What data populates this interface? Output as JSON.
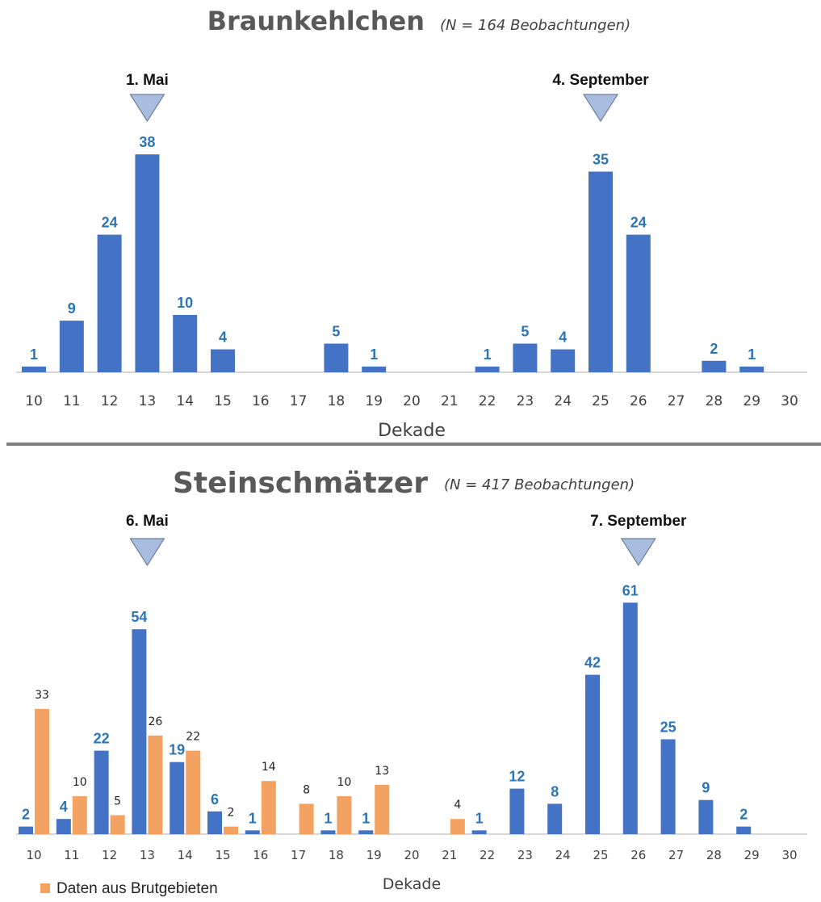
{
  "colors": {
    "primary_bar": "#4472c4",
    "breeding_bar": "#f4a261",
    "marker": "#a9bde0",
    "marker_stroke": "#6f7f99",
    "divider": "#808080",
    "axis": "#c8c8c8"
  },
  "xlabel": "Dekade",
  "chart_data": [
    {
      "type": "bar",
      "title": "Braunkehlchen",
      "subtitle": "(N = 164 Beobachtungen)",
      "xlabel": "Dekade",
      "categories": [
        "10",
        "11",
        "12",
        "13",
        "14",
        "15",
        "16",
        "17",
        "18",
        "19",
        "20",
        "21",
        "22",
        "23",
        "24",
        "25",
        "26",
        "27",
        "28",
        "29",
        "30"
      ],
      "series": [
        {
          "values": [
            1,
            9,
            24,
            38,
            10,
            4,
            null,
            null,
            5,
            1,
            null,
            null,
            1,
            5,
            4,
            35,
            24,
            null,
            2,
            1,
            null
          ],
          "color": "#4472c4"
        }
      ],
      "markers": [
        {
          "label": "1. Mai",
          "category": "13"
        },
        {
          "label": "4. September",
          "category": "25"
        }
      ]
    },
    {
      "type": "bar",
      "title": "Steinschmätzer",
      "subtitle": "(N = 417 Beobachtungen)",
      "xlabel": "Dekade",
      "categories": [
        "10",
        "11",
        "12",
        "13",
        "14",
        "15",
        "16",
        "17",
        "18",
        "19",
        "20",
        "21",
        "22",
        "23",
        "24",
        "25",
        "26",
        "27",
        "28",
        "29",
        "30"
      ],
      "series": [
        {
          "values": [
            2,
            4,
            22,
            54,
            19,
            6,
            1,
            null,
            1,
            1,
            null,
            null,
            1,
            12,
            8,
            42,
            61,
            25,
            9,
            2,
            null
          ],
          "color": "#4472c4"
        },
        {
          "name": "Daten aus Brutgebieten",
          "values": [
            33,
            10,
            5,
            26,
            22,
            2,
            14,
            8,
            10,
            13,
            null,
            4,
            null,
            null,
            null,
            null,
            null,
            null,
            null,
            null,
            null
          ],
          "color": "#f4a261"
        }
      ],
      "markers": [
        {
          "label": "6. Mai",
          "category": "13"
        },
        {
          "label": "7. September",
          "category": "26"
        }
      ],
      "legend": "bottom-left"
    }
  ]
}
